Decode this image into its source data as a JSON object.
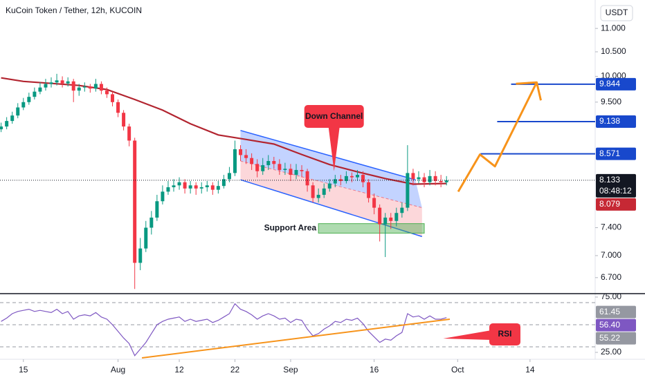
{
  "chart_data": [
    {
      "type": "candlestick",
      "title": "KuCoin Token / Tether, 12h, KUCOIN",
      "unit": "USDT",
      "x": [
        -4,
        -3,
        -2,
        -1,
        0,
        1,
        2,
        3,
        4,
        5,
        6,
        7,
        8,
        9,
        10,
        11,
        12,
        13,
        14,
        15,
        16,
        17,
        18,
        19,
        20,
        21,
        22,
        23,
        24,
        25,
        26,
        27,
        28,
        29,
        30,
        31,
        32,
        33,
        34,
        35,
        36,
        37,
        38,
        39,
        40,
        41,
        42,
        43,
        44,
        45,
        46,
        47,
        48,
        49,
        50,
        51,
        52,
        53,
        54,
        55,
        56,
        57,
        58,
        59,
        60,
        61,
        62,
        63,
        64,
        65,
        66,
        67,
        68,
        69,
        70,
        71,
        72,
        73,
        74,
        75,
        76
      ],
      "open": [
        9.0,
        9.05,
        9.15,
        9.25,
        9.4,
        9.5,
        9.6,
        9.7,
        9.78,
        9.85,
        9.88,
        9.92,
        9.86,
        9.9,
        9.72,
        9.78,
        9.8,
        9.76,
        9.85,
        9.72,
        9.65,
        9.5,
        9.3,
        9.05,
        8.8,
        6.9,
        7.1,
        7.4,
        7.55,
        7.8,
        7.95,
        8.02,
        8.05,
        8.1,
        8.0,
        8.05,
        8.0,
        8.02,
        8.05,
        7.98,
        8.04,
        8.15,
        8.25,
        8.65,
        8.55,
        8.5,
        8.4,
        8.28,
        8.38,
        8.45,
        8.4,
        8.3,
        8.32,
        8.22,
        8.3,
        8.28,
        8.05,
        7.85,
        7.9,
        8.0,
        8.08,
        8.15,
        8.12,
        8.2,
        8.18,
        8.22,
        8.1,
        7.85,
        7.7,
        7.45,
        7.55,
        7.5,
        7.62,
        7.7,
        8.25,
        8.15,
        8.18,
        8.1,
        8.2,
        8.12,
        8.1
      ],
      "high": [
        9.12,
        9.22,
        9.32,
        9.48,
        9.58,
        9.68,
        9.78,
        9.88,
        9.95,
        9.98,
        10.05,
        10.0,
        9.98,
        9.95,
        9.85,
        9.88,
        9.85,
        9.95,
        9.9,
        9.78,
        9.7,
        9.55,
        9.35,
        9.1,
        8.85,
        7.25,
        7.5,
        7.65,
        7.9,
        8.05,
        8.12,
        8.15,
        8.18,
        8.15,
        8.12,
        8.1,
        8.1,
        8.12,
        8.1,
        8.12,
        8.22,
        8.35,
        8.8,
        8.72,
        8.65,
        8.58,
        8.48,
        8.5,
        8.55,
        8.52,
        8.48,
        8.42,
        8.4,
        8.4,
        8.38,
        8.32,
        8.1,
        8.0,
        8.08,
        8.15,
        8.22,
        8.22,
        8.28,
        8.26,
        8.3,
        8.28,
        8.15,
        7.92,
        7.75,
        7.62,
        7.62,
        7.7,
        7.78,
        8.72,
        8.32,
        8.28,
        8.25,
        8.3,
        8.28,
        8.22,
        8.2
      ],
      "low": [
        8.95,
        9.0,
        9.1,
        9.2,
        9.35,
        9.45,
        9.55,
        9.65,
        9.72,
        9.78,
        9.82,
        9.78,
        9.8,
        9.5,
        9.62,
        9.7,
        9.68,
        9.7,
        9.65,
        9.58,
        9.42,
        9.22,
        8.98,
        8.7,
        6.55,
        6.8,
        7.05,
        7.3,
        7.5,
        7.75,
        7.9,
        7.95,
        7.98,
        7.92,
        7.92,
        7.9,
        7.92,
        7.95,
        7.9,
        7.92,
        8.0,
        8.1,
        8.2,
        8.45,
        8.4,
        8.3,
        8.18,
        8.22,
        8.3,
        8.32,
        8.22,
        8.22,
        8.12,
        8.15,
        8.18,
        7.95,
        7.78,
        7.78,
        7.85,
        7.95,
        8.02,
        8.05,
        8.08,
        8.1,
        8.12,
        8.02,
        7.78,
        7.6,
        7.2,
        6.98,
        7.38,
        7.42,
        7.55,
        7.65,
        8.05,
        8.08,
        8.02,
        8.05,
        8.05,
        8.02,
        8.05
      ],
      "close": [
        9.05,
        9.15,
        9.25,
        9.4,
        9.5,
        9.6,
        9.7,
        9.78,
        9.85,
        9.88,
        9.92,
        9.86,
        9.9,
        9.72,
        9.78,
        9.8,
        9.76,
        9.85,
        9.72,
        9.65,
        9.5,
        9.3,
        9.05,
        8.8,
        6.9,
        7.1,
        7.4,
        7.55,
        7.8,
        7.95,
        8.02,
        8.05,
        8.1,
        8.0,
        8.05,
        8.0,
        8.02,
        8.05,
        7.98,
        8.04,
        8.15,
        8.25,
        8.65,
        8.55,
        8.5,
        8.4,
        8.28,
        8.38,
        8.45,
        8.4,
        8.3,
        8.32,
        8.22,
        8.3,
        8.28,
        8.05,
        7.85,
        7.9,
        8.0,
        8.08,
        8.15,
        8.12,
        8.2,
        8.18,
        8.22,
        8.1,
        7.85,
        7.7,
        7.45,
        7.55,
        7.5,
        7.62,
        7.7,
        8.25,
        8.15,
        8.18,
        8.1,
        8.2,
        8.12,
        8.1,
        8.13
      ],
      "up_color": "#089981",
      "down_color": "#f23645",
      "moving_average": {
        "color": "#b2242f",
        "x": [
          -4,
          0,
          5,
          10,
          15,
          20,
          25,
          30,
          35,
          40,
          45,
          50,
          55,
          60,
          65,
          70,
          76
        ],
        "values": [
          9.97,
          9.9,
          9.86,
          9.82,
          9.74,
          9.55,
          9.35,
          9.1,
          8.9,
          8.82,
          8.74,
          8.56,
          8.39,
          8.27,
          8.16,
          8.07,
          8.08
        ]
      },
      "xlim": [
        -4.2,
        102.7
      ],
      "xticks": [
        {
          "value": 0,
          "label": "15"
        },
        {
          "value": 17,
          "label": "Aug"
        },
        {
          "value": 28,
          "label": "12"
        },
        {
          "value": 38,
          "label": "22"
        },
        {
          "value": 48,
          "label": "Sep"
        },
        {
          "value": 63,
          "label": "16"
        },
        {
          "value": 78,
          "label": "Oct"
        },
        {
          "value": 91,
          "label": "14"
        }
      ],
      "ylim": [
        6.49,
        11.64
      ],
      "log_scale": true,
      "grid": false,
      "yticks": [
        {
          "value": 11,
          "label": "11.000"
        },
        {
          "value": 10.5,
          "label": "10.500"
        },
        {
          "value": 10,
          "label": "10.000"
        },
        {
          "value": 9.5,
          "label": "9.500"
        },
        {
          "value": 7.4,
          "label": "7.400"
        },
        {
          "value": 7,
          "label": "7.000"
        },
        {
          "value": 6.7,
          "label": "6.700"
        }
      ],
      "current_price": {
        "value": 8.133,
        "label": "8.133",
        "countdown": "08:48:12",
        "color": "#131722"
      },
      "price_tags": [
        {
          "value": 9.844,
          "label": "9.844",
          "color": "#1848cc",
          "line_from": 87.6
        },
        {
          "value": 9.138,
          "label": "9.138",
          "color": "#1848cc",
          "line_from": 85.1
        },
        {
          "value": 8.571,
          "label": "8.571",
          "color": "#1848cc",
          "line_from": 82.1
        },
        {
          "value": 8.079,
          "label": "8.079",
          "color": "#c62834"
        }
      ],
      "channel": {
        "color": "#2962ff",
        "upper": {
          "x": [
            39,
            70.4
          ],
          "values": [
            8.98,
            8.14
          ]
        },
        "mid": {
          "x": [
            39,
            71.6
          ],
          "values": [
            8.45,
            7.7
          ]
        },
        "lower": {
          "x": [
            39,
            71.6
          ],
          "values": [
            8.14,
            7.27
          ]
        }
      },
      "callout": {
        "label": "Down Channel",
        "x": 55.8,
        "value": 8.28,
        "color": "#f23645"
      },
      "support": {
        "label": "Support Area",
        "x": [
          53,
          72
        ],
        "values": [
          7.32,
          7.46
        ],
        "color": "#4caf50"
      },
      "projection": {
        "color": "#f7931a",
        "x": [
          78.1,
          82,
          84.7,
          92.2
        ],
        "values": [
          7.95,
          8.56,
          8.36,
          9.88
        ]
      }
    },
    {
      "type": "line",
      "color": "#7e57c2",
      "x": [
        -4,
        -3,
        -2,
        -1,
        0,
        1,
        2,
        3,
        4,
        5,
        6,
        7,
        8,
        9,
        10,
        11,
        12,
        13,
        14,
        15,
        16,
        17,
        18,
        19,
        20,
        21,
        22,
        23,
        24,
        25,
        26,
        27,
        28,
        29,
        30,
        31,
        32,
        33,
        34,
        35,
        36,
        37,
        38,
        39,
        40,
        41,
        42,
        43,
        44,
        45,
        46,
        47,
        48,
        49,
        50,
        51,
        52,
        53,
        54,
        55,
        56,
        57,
        58,
        59,
        60,
        61,
        62,
        63,
        64,
        65,
        66,
        67,
        68,
        69,
        70,
        71,
        72,
        73,
        74,
        75,
        76
      ],
      "values": [
        53,
        56,
        60,
        62,
        63,
        64,
        62,
        63,
        62,
        61,
        64,
        60,
        62,
        55,
        58,
        59,
        58,
        61,
        57,
        55,
        50,
        44,
        38,
        33,
        22,
        28,
        34,
        42,
        50,
        53,
        55,
        56,
        57,
        53,
        55,
        53,
        54,
        55,
        52,
        54,
        57,
        60,
        69,
        64,
        62,
        59,
        55,
        58,
        60,
        58,
        55,
        56,
        52,
        55,
        54,
        46,
        40,
        42,
        46,
        49,
        53,
        52,
        55,
        54,
        56,
        51,
        44,
        39,
        34,
        37,
        36,
        40,
        43,
        60,
        57,
        58,
        55,
        58,
        55,
        55,
        56.4
      ],
      "xlim": [
        -4.2,
        102.7
      ],
      "ylim": [
        18.75,
        78.1
      ],
      "yticks": [
        {
          "value": 75,
          "label": "75.00"
        },
        {
          "value": 25,
          "label": "25.00"
        }
      ],
      "bands": [
        70,
        50,
        30
      ],
      "value_tags": [
        {
          "value": 61.45,
          "label": "61.45",
          "color": "#9598a1"
        },
        {
          "value": 56.4,
          "label": "56.40",
          "color": "#7e57c2"
        },
        {
          "value": 55.22,
          "label": "55.22",
          "color": "#9598a1"
        }
      ],
      "trendline": {
        "color": "#f7931a",
        "x": [
          21.3,
          76.6
        ],
        "values": [
          20,
          55
        ]
      },
      "callout": {
        "label": "RSI",
        "x": 75.4,
        "value": 37.5,
        "color": "#f23645"
      }
    }
  ]
}
